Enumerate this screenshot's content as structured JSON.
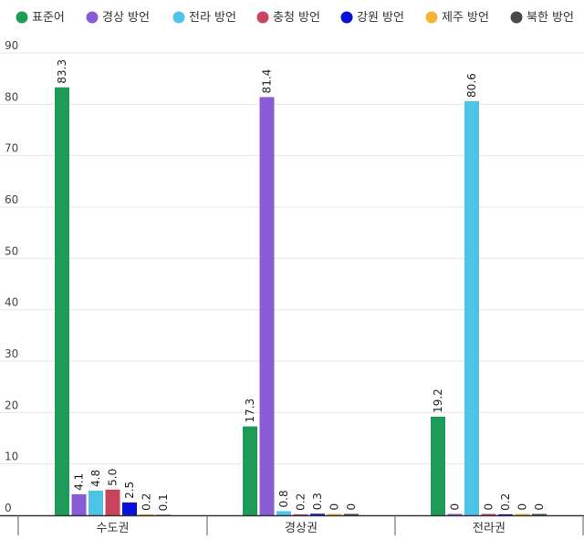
{
  "chart_data": {
    "type": "bar",
    "categories": [
      "수도권",
      "경상권",
      "전라권"
    ],
    "series": [
      {
        "name": "표준어",
        "color": "#1e9b58",
        "values": [
          83.3,
          17.3,
          19.2
        ],
        "labels": [
          "83.3",
          "17.3",
          "19.2"
        ]
      },
      {
        "name": "경상 방언",
        "color": "#8a5bd6",
        "values": [
          4.1,
          81.4,
          0
        ],
        "labels": [
          "4.1",
          "81.4",
          "0"
        ]
      },
      {
        "name": "전라 방언",
        "color": "#4dc3e8",
        "values": [
          4.8,
          0.8,
          80.6
        ],
        "labels": [
          "4.8",
          "0.8",
          "80.6"
        ]
      },
      {
        "name": "충청 방언",
        "color": "#c9445a",
        "values": [
          5.0,
          0.2,
          0
        ],
        "labels": [
          "5.0",
          "0.2",
          "0"
        ]
      },
      {
        "name": "강원 방언",
        "color": "#0a10d6",
        "values": [
          2.5,
          0.3,
          0.2
        ],
        "labels": [
          "2.5",
          "0.3",
          "0.2"
        ]
      },
      {
        "name": "제주 방언",
        "color": "#f5b638",
        "values": [
          0.2,
          0,
          0
        ],
        "labels": [
          "0.2",
          "0",
          "0"
        ]
      },
      {
        "name": "북한 방언",
        "color": "#4a4a4a",
        "values": [
          0.1,
          0,
          0
        ],
        "labels": [
          "0.1",
          "0",
          "0"
        ]
      }
    ],
    "yticks": [
      "0",
      "10",
      "20",
      "30",
      "40",
      "50",
      "60",
      "70",
      "80",
      "90"
    ],
    "ylim": [
      0,
      90
    ],
    "grid": true,
    "legend_position": "top"
  }
}
